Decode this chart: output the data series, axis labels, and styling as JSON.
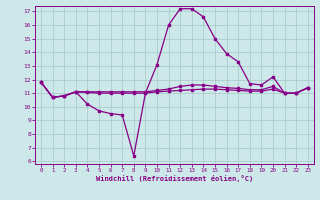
{
  "xlabel": "Windchill (Refroidissement éolien,°C)",
  "bg_color": "#cce8e8",
  "line_color": "#880088",
  "xlim": [
    -0.5,
    23.5
  ],
  "ylim": [
    5.8,
    17.4
  ],
  "xticks": [
    0,
    1,
    2,
    3,
    4,
    5,
    6,
    7,
    8,
    9,
    10,
    11,
    12,
    13,
    14,
    15,
    16,
    17,
    18,
    19,
    20,
    21,
    22,
    23
  ],
  "yticks": [
    6,
    7,
    8,
    9,
    10,
    11,
    12,
    13,
    14,
    15,
    16,
    17
  ],
  "curve1_x": [
    0,
    1,
    2,
    3,
    4,
    5,
    6,
    7,
    8,
    9,
    10,
    11,
    12,
    13,
    14,
    15,
    16,
    17,
    18,
    19,
    20,
    21,
    22,
    23
  ],
  "curve1_y": [
    11.8,
    10.7,
    10.8,
    11.1,
    10.2,
    9.7,
    9.5,
    9.4,
    6.4,
    11.0,
    13.1,
    16.0,
    17.2,
    17.2,
    16.6,
    15.0,
    13.9,
    13.3,
    11.7,
    11.6,
    12.2,
    11.0,
    11.0,
    11.4
  ],
  "curve2_x": [
    0,
    1,
    2,
    3,
    4,
    5,
    6,
    7,
    8,
    9,
    10,
    11,
    12,
    13,
    14,
    15,
    16,
    17,
    18,
    19,
    20,
    21,
    22,
    23
  ],
  "curve2_y": [
    11.8,
    10.7,
    10.8,
    11.1,
    11.05,
    11.0,
    11.0,
    11.0,
    11.0,
    11.0,
    11.1,
    11.15,
    11.2,
    11.25,
    11.3,
    11.3,
    11.25,
    11.2,
    11.15,
    11.15,
    11.3,
    11.0,
    11.0,
    11.4
  ],
  "curve3_x": [
    0,
    1,
    2,
    3,
    4,
    5,
    6,
    7,
    8,
    9,
    10,
    11,
    12,
    13,
    14,
    15,
    16,
    17,
    18,
    19,
    20,
    21,
    22,
    23
  ],
  "curve3_y": [
    11.8,
    10.7,
    10.8,
    11.1,
    11.1,
    11.1,
    11.1,
    11.1,
    11.1,
    11.1,
    11.2,
    11.3,
    11.5,
    11.6,
    11.6,
    11.5,
    11.4,
    11.35,
    11.25,
    11.25,
    11.5,
    11.0,
    11.0,
    11.4
  ]
}
